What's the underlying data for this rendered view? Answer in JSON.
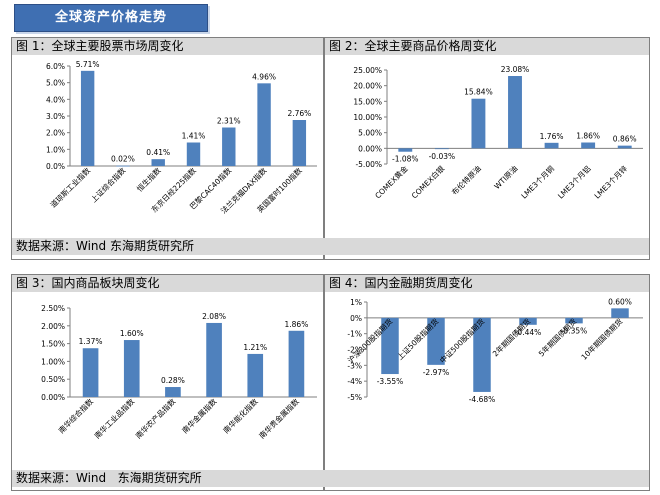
{
  "banner": "全球资产价格走势",
  "colors": {
    "bar": "#4f81bd",
    "banner": "#3f6fb2",
    "title_bg": "#d9d9d9"
  },
  "sources": {
    "top": "数据来源：Wind 东海期货研究所",
    "bottom": "数据来源：Wind   东海期货研究所"
  },
  "chart_data": [
    {
      "id": "chart1",
      "type": "bar",
      "title": "图 1：全球主要股票市场周变化",
      "categories": [
        "道琼斯工业指数",
        "上证综合指数",
        "恒生指数",
        "东京日经225指数",
        "巴黎CAC40指数",
        "法兰克福DAX指数",
        "英国富时100指数"
      ],
      "values": [
        5.71,
        0.02,
        0.41,
        1.41,
        2.31,
        4.96,
        2.76
      ],
      "value_labels": [
        "5.71%",
        "0.02%",
        "0.41%",
        "1.41%",
        "2.31%",
        "4.96%",
        "2.76%"
      ],
      "yticks": [
        "6.0%",
        "5.0%",
        "4.0%",
        "3.0%",
        "2.0%",
        "1.0%",
        "0.0%"
      ],
      "ylim": [
        0,
        6
      ],
      "grid": false
    },
    {
      "id": "chart2",
      "type": "bar",
      "title": "图 2：全球主要商品价格周变化",
      "categories": [
        "COMEX黄金",
        "COMEX白银",
        "布伦特原油",
        "WTI原油",
        "LME3个月铜",
        "LME3个月铝",
        "LME3个月锌"
      ],
      "values": [
        -1.08,
        -0.03,
        15.84,
        23.08,
        1.76,
        1.86,
        0.86
      ],
      "value_labels": [
        "-1.08%",
        "-0.03%",
        "15.84%",
        "23.08%",
        "1.76%",
        "1.86%",
        "0.86%"
      ],
      "yticks": [
        "25.00%",
        "20.00%",
        "15.00%",
        "10.00%",
        "5.00%",
        "0.00%",
        "-5.00%"
      ],
      "ylim": [
        -5,
        25
      ],
      "grid": false
    },
    {
      "id": "chart3",
      "type": "bar",
      "title": "图 3：国内商品板块周变化",
      "categories": [
        "南华综合指数",
        "南华工业品指数",
        "南华农产品指数",
        "南华金属指数",
        "南华能化指数",
        "南华贵金属指数"
      ],
      "values": [
        1.37,
        1.6,
        0.28,
        2.08,
        1.21,
        1.86
      ],
      "value_labels": [
        "1.37%",
        "1.60%",
        "0.28%",
        "2.08%",
        "1.21%",
        "1.86%"
      ],
      "yticks": [
        "2.50%",
        "2.00%",
        "1.50%",
        "1.00%",
        "0.50%",
        "0.00%"
      ],
      "ylim": [
        0,
        2.5
      ],
      "grid": false
    },
    {
      "id": "chart4",
      "type": "bar",
      "title": "图 4：国内金融期货周变化",
      "categories": [
        "沪深300股指期货",
        "上证50股指期货",
        "中证500股指期货",
        "2年期国债期货",
        "5年期国债期货",
        "10年期国债期货"
      ],
      "values": [
        -3.55,
        -2.97,
        -4.68,
        -0.44,
        -0.35,
        0.6
      ],
      "value_labels": [
        "-3.55%",
        "-2.97%",
        "-4.68%",
        "-0.44%",
        "-0.35%",
        "0.60%"
      ],
      "yticks": [
        "1%",
        "0%",
        "-1%",
        "-2%",
        "-3%",
        "-4%",
        "-5%"
      ],
      "ylim": [
        -5,
        1
      ],
      "grid": false
    }
  ]
}
